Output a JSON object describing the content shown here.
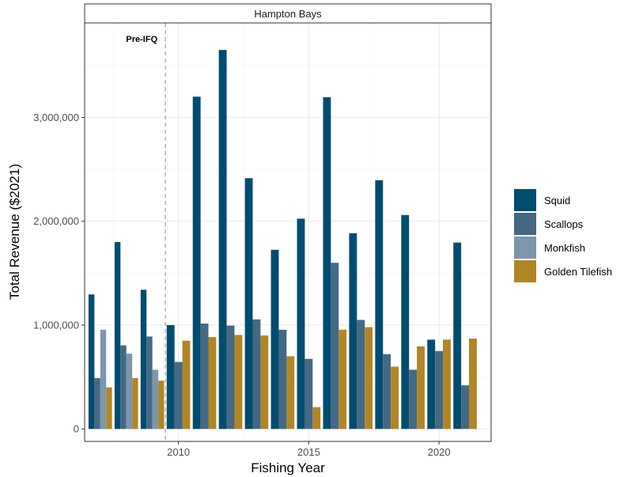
{
  "chart_data": {
    "type": "bar",
    "title": "Hampton Bays",
    "xlabel": "Fishing Year",
    "ylabel": "Total Revenue ($2021)",
    "x": [
      2007,
      2008,
      2009,
      2010,
      2011,
      2012,
      2013,
      2014,
      2015,
      2016,
      2017,
      2018,
      2019,
      2020,
      2021
    ],
    "xlim": [
      2006.4,
      2022.0
    ],
    "xticks": [
      2010,
      2015,
      2020
    ],
    "xtick_labels": [
      "2010",
      "2015",
      "2020"
    ],
    "ylim": [
      -120000,
      3910000
    ],
    "yticks": [
      0,
      1000000,
      2000000,
      3000000
    ],
    "ytick_labels": [
      "0",
      "1,000,000",
      "2,000,000",
      "3,000,000"
    ],
    "grid": true,
    "legend_position": "right",
    "series": [
      {
        "name": "Squid",
        "color": "#004d70",
        "values": [
          1295000,
          1800000,
          1340000,
          1000000,
          3200000,
          3650000,
          2415000,
          1725000,
          2025000,
          3195000,
          1885000,
          2395000,
          2060000,
          860000,
          1795000
        ]
      },
      {
        "name": "Scallops",
        "color": "#436985",
        "values": [
          490000,
          805000,
          890000,
          645000,
          1015000,
          995000,
          1055000,
          955000,
          675000,
          1600000,
          1050000,
          720000,
          570000,
          750000,
          420000
        ]
      },
      {
        "name": "Monkfish",
        "color": "#7d96ab",
        "values": [
          955000,
          725000,
          570000,
          null,
          null,
          null,
          null,
          null,
          null,
          null,
          null,
          null,
          null,
          null,
          null
        ]
      },
      {
        "name": "Golden Tilefish",
        "color": "#b08627",
        "values": [
          400000,
          490000,
          465000,
          850000,
          885000,
          905000,
          900000,
          700000,
          210000,
          955000,
          980000,
          600000,
          795000,
          860000,
          870000
        ]
      }
    ],
    "annotations": [
      {
        "text": "Pre-IFQ",
        "x": 2009.5,
        "line": "dashed vertical"
      }
    ]
  }
}
